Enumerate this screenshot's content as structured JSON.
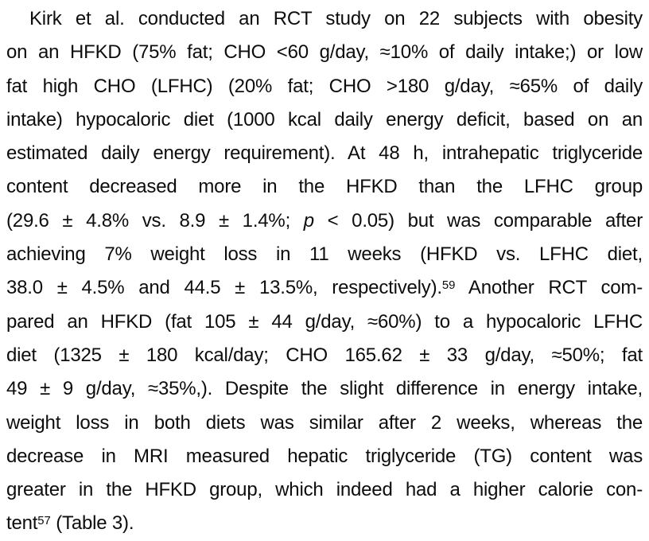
{
  "page": {
    "background_color": "#ffffff",
    "text_color": "#0d0d0d"
  },
  "paragraph": {
    "lines": [
      {
        "indent": true,
        "segments": [
          {
            "t": "Kirk et al. conducted an RCT study on 22 subjects with obesity"
          }
        ]
      },
      {
        "segments": [
          {
            "t": "on an HFKD (75% fat; CHO <60 g/day, ≈10% of daily intake;) or low"
          }
        ]
      },
      {
        "segments": [
          {
            "t": "fat high CHO (LFHC) (20% fat; CHO >180 g/day, ≈65% of daily"
          }
        ]
      },
      {
        "segments": [
          {
            "t": "intake) hypocaloric diet (1000 kcal daily energy deficit, based on an"
          }
        ]
      },
      {
        "segments": [
          {
            "t": "estimated daily energy requirement). At 48 h, intrahepatic triglyceride"
          }
        ]
      },
      {
        "segments": [
          {
            "t": "content decreased more in the HFKD than the LFHC group"
          }
        ]
      },
      {
        "segments": [
          {
            "t": "(29.6 ± 4.8% vs. 8.9 ± 1.4%; "
          },
          {
            "t": "p",
            "style": "italic"
          },
          {
            "t": " < 0.05) but was comparable after"
          }
        ]
      },
      {
        "segments": [
          {
            "t": "achieving 7% weight loss in 11 weeks (HFKD vs. LFHC diet,"
          }
        ]
      },
      {
        "segments": [
          {
            "t": "38.0 ± 4.5% and 44.5 ± 13.5%, respectively)."
          },
          {
            "t": "59",
            "style": "sup"
          },
          {
            "t": " Another RCT com-"
          }
        ]
      },
      {
        "segments": [
          {
            "t": "pared an HFKD (fat 105 ± 44 g/day, ≈60%) to a hypocaloric LFHC"
          }
        ]
      },
      {
        "segments": [
          {
            "t": "diet (1325 ± 180 kcal/day; CHO 165.62 ± 33 g/day, ≈50%; fat"
          }
        ]
      },
      {
        "segments": [
          {
            "t": "49 ± 9 g/day, ≈35%,). Despite the slight difference in energy intake,"
          }
        ]
      },
      {
        "segments": [
          {
            "t": "weight loss in both diets was similar after 2 weeks, whereas the"
          }
        ]
      },
      {
        "segments": [
          {
            "t": "decrease in MRI measured hepatic triglyceride (TG) content was"
          }
        ]
      },
      {
        "segments": [
          {
            "t": "greater in the HFKD group, which indeed had a higher calorie con-"
          }
        ]
      },
      {
        "justify": false,
        "segments": [
          {
            "t": "tent"
          },
          {
            "t": "57",
            "style": "sup"
          },
          {
            "t": " (Table 3)."
          }
        ]
      }
    ]
  }
}
